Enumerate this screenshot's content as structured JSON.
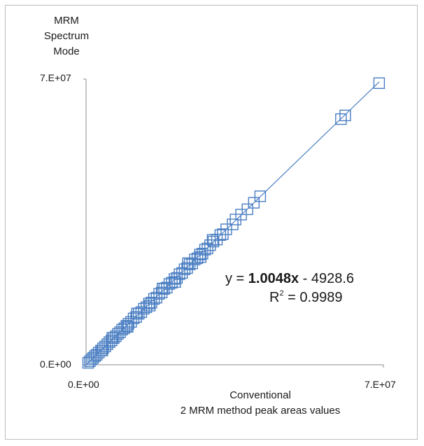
{
  "chart_data": {
    "type": "scatter",
    "title": "",
    "ylabel_lines": [
      "MRM",
      "Spectrum",
      "Mode"
    ],
    "xlabel_lines": [
      "Conventional",
      "2 MRM method peak areas values"
    ],
    "xlim": [
      0,
      70000000
    ],
    "ylim": [
      0,
      70000000
    ],
    "x_ticks": [
      "0.E+00",
      "7.E+07"
    ],
    "y_ticks": [
      "0.E+00",
      "7.E+07"
    ],
    "grid": false,
    "marker": "square-open",
    "series_color": "#4a7ec2",
    "trendline": {
      "slope": 1.0048,
      "intercept": -4928.6,
      "r2": 0.9989
    },
    "equation": {
      "prefix": "y = ",
      "slope_text": "1.0048x",
      "suffix": " - 4928.6"
    },
    "r2_label": {
      "base": "R",
      "sup": "2",
      "value_text": " = 0.9989"
    },
    "points": [
      [
        500000,
        480000
      ],
      [
        900000,
        870000
      ],
      [
        1300000,
        1320000
      ],
      [
        1700000,
        1690000
      ],
      [
        2100000,
        2120000
      ],
      [
        2500000,
        2460000
      ],
      [
        3000000,
        3010000
      ],
      [
        3500000,
        3480000
      ],
      [
        4000000,
        4050000
      ],
      [
        4500000,
        4470000
      ],
      [
        5000000,
        5020000
      ],
      [
        5500000,
        5560000
      ],
      [
        6000000,
        5950000
      ],
      [
        6500000,
        6540000
      ],
      [
        7000000,
        6980000
      ],
      [
        7500000,
        7560000
      ],
      [
        8000000,
        7980000
      ],
      [
        8500000,
        8620000
      ],
      [
        9000000,
        8960000
      ],
      [
        9500000,
        9580000
      ],
      [
        10000000,
        10050000
      ],
      [
        10600000,
        10520000
      ],
      [
        11200000,
        11350000
      ],
      [
        11800000,
        11700000
      ],
      [
        12400000,
        12500000
      ],
      [
        13000000,
        12900000
      ],
      [
        13600000,
        13750000
      ],
      [
        14200000,
        14100000
      ],
      [
        14800000,
        15000000
      ],
      [
        15400000,
        15250000
      ],
      [
        16000000,
        16150000
      ],
      [
        16600000,
        16450000
      ],
      [
        17200000,
        17400000
      ],
      [
        17800000,
        17700000
      ],
      [
        18400000,
        18600000
      ],
      [
        19000000,
        18900000
      ],
      [
        19600000,
        19800000
      ],
      [
        20200000,
        20100000
      ],
      [
        20800000,
        21000000
      ],
      [
        21400000,
        21300000
      ],
      [
        22000000,
        22200000
      ],
      [
        22600000,
        22500000
      ],
      [
        23200000,
        23400000
      ],
      [
        23800000,
        23700000
      ],
      [
        24400000,
        24600000
      ],
      [
        25000000,
        24850000
      ],
      [
        25600000,
        25800000
      ],
      [
        26200000,
        26100000
      ],
      [
        26800000,
        27000000
      ],
      [
        27400000,
        27250000
      ],
      [
        28000000,
        28200000
      ],
      [
        28600000,
        28500000
      ],
      [
        29200000,
        29300000
      ],
      [
        30000000,
        30200000
      ],
      [
        30800000,
        30700000
      ],
      [
        31600000,
        31800000
      ],
      [
        33000000,
        33200000
      ],
      [
        34500000,
        34400000
      ],
      [
        36500000,
        36800000
      ],
      [
        38000000,
        38100000
      ],
      [
        39500000,
        39700000
      ],
      [
        41000000,
        41300000
      ],
      [
        60000000,
        60200000
      ],
      [
        61000000,
        61100000
      ],
      [
        69000000,
        69000000
      ],
      [
        3800000,
        3500000
      ],
      [
        6200000,
        6600000
      ],
      [
        9800000,
        9300000
      ],
      [
        12000000,
        12600000
      ],
      [
        15000000,
        14500000
      ],
      [
        18000000,
        18700000
      ],
      [
        21000000,
        20300000
      ],
      [
        24000000,
        24900000
      ],
      [
        27000000,
        26400000
      ],
      [
        29800000,
        30600000
      ],
      [
        32200000,
        32000000
      ],
      [
        35200000,
        35600000
      ]
    ]
  }
}
